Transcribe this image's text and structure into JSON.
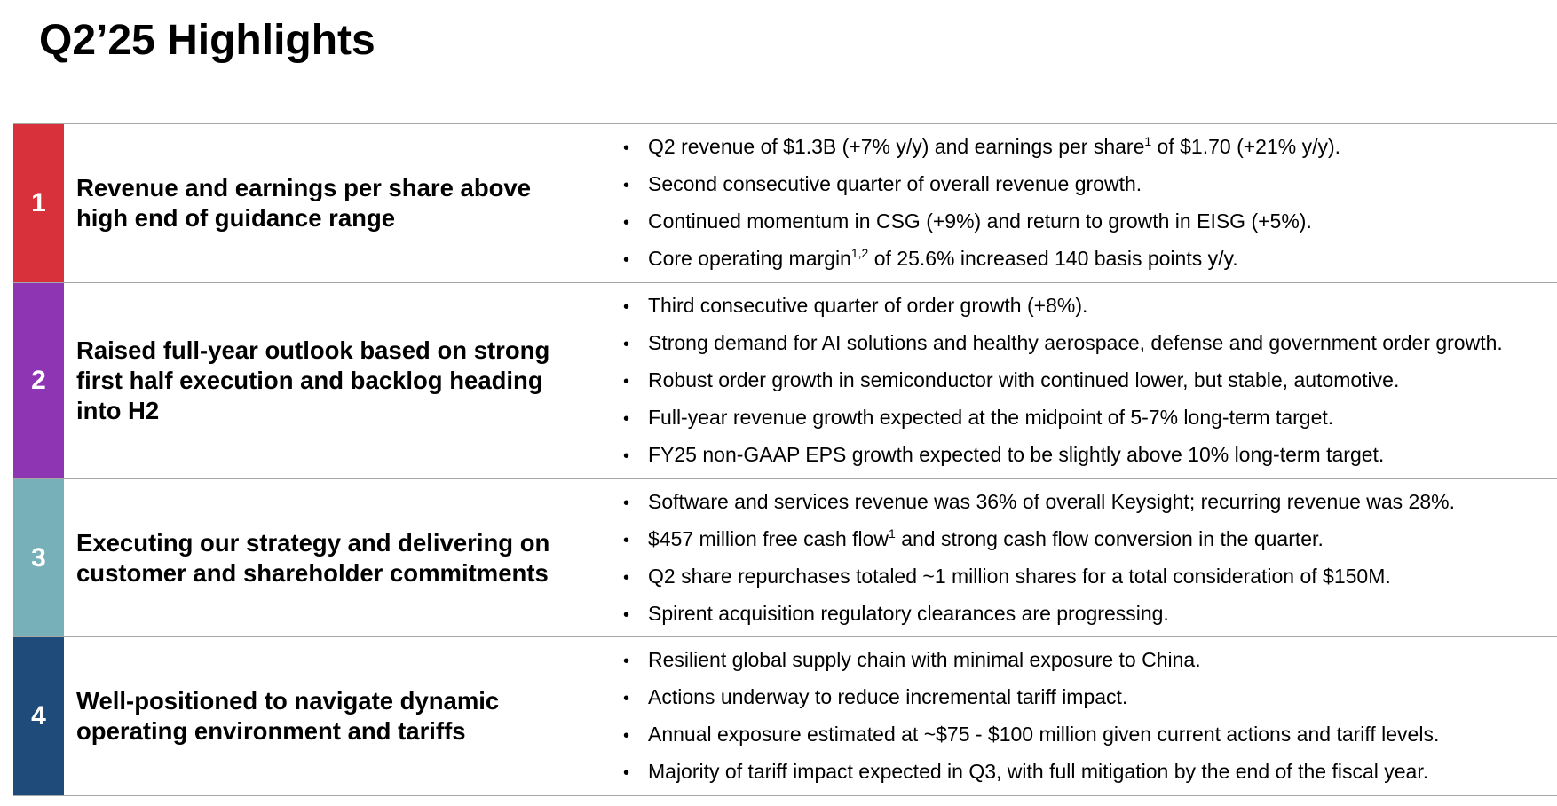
{
  "page": {
    "title": "Q2’25 Highlights"
  },
  "colors": {
    "row1": "#d9313c",
    "row2": "#8e35b4",
    "row3": "#77b0b9",
    "row4": "#1e4b7a"
  },
  "rows": [
    {
      "number": "1",
      "heading": "Revenue and earnings per share above high end of guidance range",
      "bullets": [
        {
          "pre": "Q2 revenue of $1.3B (+7% y/y) and earnings per share",
          "sup": "1",
          "post": " of $1.70 (+21% y/y)."
        },
        {
          "pre": "Second consecutive quarter of overall revenue growth."
        },
        {
          "pre": "Continued momentum in CSG (+9%) and return to growth in EISG (+5%)."
        },
        {
          "pre": "Core operating margin",
          "sup": "1,2",
          "post": " of 25.6% increased 140 basis points y/y."
        }
      ]
    },
    {
      "number": "2",
      "heading": "Raised full-year outlook based on strong first half execution and backlog heading into H2",
      "bullets": [
        {
          "pre": "Third consecutive quarter of order growth (+8%)."
        },
        {
          "pre": "Strong demand for AI solutions and healthy aerospace, defense and government order growth."
        },
        {
          "pre": "Robust order growth in semiconductor with continued lower, but stable, automotive."
        },
        {
          "pre": "Full-year revenue growth expected at the midpoint of 5-7% long-term target."
        },
        {
          "pre": "FY25 non-GAAP EPS growth expected to be slightly above 10% long-term target."
        }
      ]
    },
    {
      "number": "3",
      "heading": "Executing our strategy and delivering on customer and shareholder commitments",
      "bullets": [
        {
          "pre": "Software and services revenue was 36% of overall Keysight; recurring revenue was 28%."
        },
        {
          "pre": "$457 million free cash flow",
          "sup": "1",
          "post": " and strong cash flow conversion in the quarter."
        },
        {
          "pre": "Q2 share repurchases totaled ~1 million shares for a total consideration of $150M."
        },
        {
          "pre": "Spirent acquisition regulatory clearances are progressing."
        }
      ]
    },
    {
      "number": "4",
      "heading": "Well-positioned to navigate dynamic operating environment and tariffs",
      "bullets": [
        {
          "pre": "Resilient global supply chain with minimal exposure to China."
        },
        {
          "pre": "Actions underway to reduce incremental tariff impact."
        },
        {
          "pre": "Annual exposure estimated at ~$75 - $100 million given current actions and tariff levels."
        },
        {
          "pre": "Majority of tariff impact expected in Q3, with full mitigation by the end of the fiscal year."
        }
      ]
    }
  ]
}
